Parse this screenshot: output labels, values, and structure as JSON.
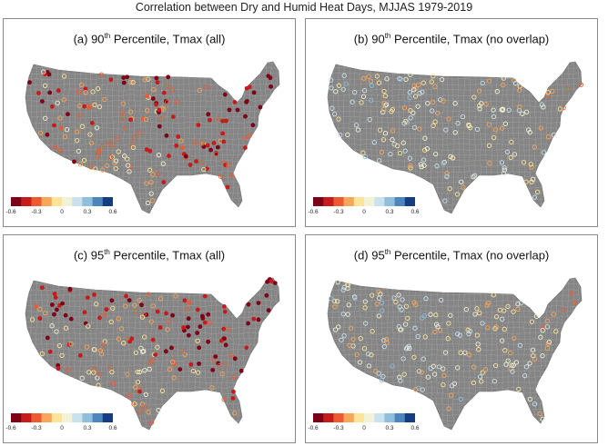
{
  "figure": {
    "title": "Correlation between Dry and Humid Heat Days, MJJAS 1979-2019"
  },
  "panels": [
    {
      "id": "a",
      "prefix": "(a) 90",
      "sup": "th",
      "suffix": " Percentile, Tmax (all)",
      "pattern": "strong"
    },
    {
      "id": "b",
      "prefix": "(b) 90",
      "sup": "th",
      "suffix": " Percentile, Tmax (no overlap)",
      "pattern": "weak"
    },
    {
      "id": "c",
      "prefix": "(c) 95",
      "sup": "th",
      "suffix": " Percentile, Tmax (all)",
      "pattern": "strong"
    },
    {
      "id": "d",
      "prefix": "(d) 95",
      "sup": "th",
      "suffix": " Percentile, Tmax (no overlap)",
      "pattern": "weak"
    }
  ],
  "colorbar": {
    "ticks": [
      "-0.6",
      "-0.3",
      "0",
      "0.3",
      "0.6"
    ],
    "colors": [
      "#7d0016",
      "#c51b1b",
      "#ee5a2f",
      "#f7a65a",
      "#fde49a",
      "#f2f2d6",
      "#c9e2ee",
      "#8fbfdc",
      "#4c86bd",
      "#163d82"
    ]
  },
  "colors": {
    "land": "#858585",
    "county_lines": "#a9a9a9",
    "frame": "#8a8a8a"
  }
}
